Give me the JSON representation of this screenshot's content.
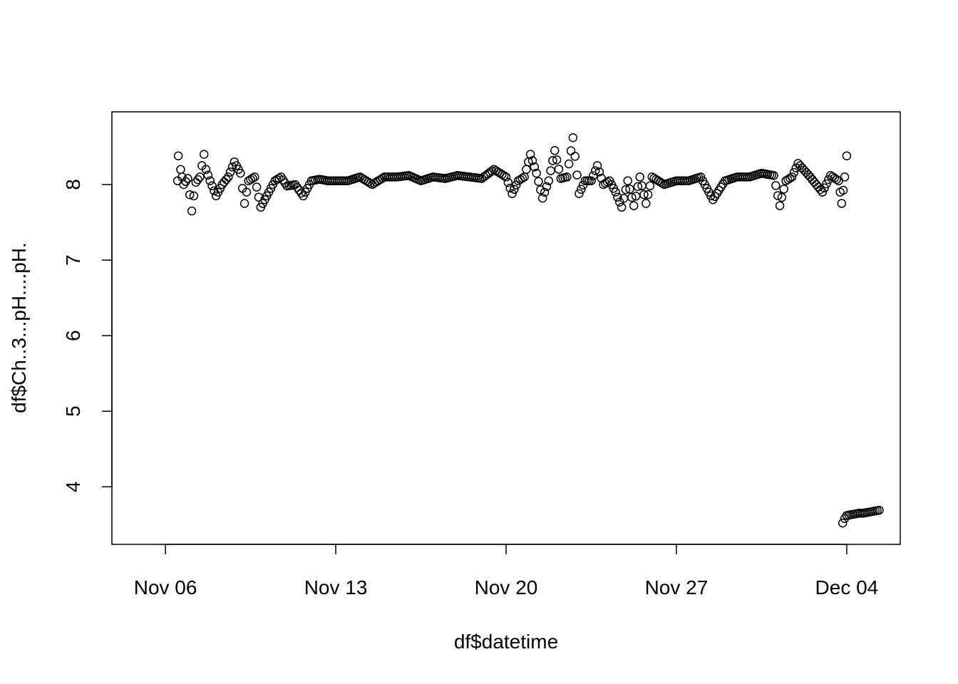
{
  "chart_data": {
    "type": "scatter",
    "title": "",
    "xlabel": "df$datetime",
    "ylabel": "df$Ch..3...pH....pH.",
    "x_type": "date",
    "xlim": [
      "2023-11-05",
      "2023-12-05"
    ],
    "ylim": [
      3.45,
      8.75
    ],
    "x_ticks": [
      {
        "date": "2023-11-06",
        "label": "Nov 06"
      },
      {
        "date": "2023-11-13",
        "label": "Nov 13"
      },
      {
        "date": "2023-11-20",
        "label": "Nov 20"
      },
      {
        "date": "2023-11-27",
        "label": "Nov 27"
      },
      {
        "date": "2023-12-04",
        "label": "Dec 04"
      }
    ],
    "y_ticks": [
      4,
      5,
      6,
      7,
      8
    ],
    "grid": false,
    "legend": "none",
    "marker": "open-circle",
    "series": [
      {
        "x": [
          "2023-11-06 12:00",
          "2023-11-06 12:40",
          "2023-11-06 15:00",
          "2023-11-06 18:00",
          "2023-11-06 22:00",
          "2023-11-07 02:00",
          "2023-11-07 04:00",
          "2023-11-07 06:00",
          "2023-11-07 10:00",
          "2023-11-07 14:00",
          "2023-11-07 16:00",
          "2023-11-07 20:00",
          "2023-11-08 02:00",
          "2023-11-08 08:00",
          "2023-11-08 14:00",
          "2023-11-08 20:00",
          "2023-11-09 02:00",
          "2023-11-09 06:00",
          "2023-11-09 10:00",
          "2023-11-09 16:00",
          "2023-11-09 22:00",
          "2023-11-10 06:00",
          "2023-11-10 12:00",
          "2023-11-10 18:00",
          "2023-11-11 00:00",
          "2023-11-11 08:00",
          "2023-11-11 16:00",
          "2023-11-12 00:00",
          "2023-11-12 08:00",
          "2023-11-12 16:00",
          "2023-11-13 00:00",
          "2023-11-13 12:00",
          "2023-11-14 00:00",
          "2023-11-14 12:00",
          "2023-11-15 00:00",
          "2023-11-15 12:00",
          "2023-11-16 00:00",
          "2023-11-16 12:00",
          "2023-11-17 00:00",
          "2023-11-17 12:00",
          "2023-11-18 00:00",
          "2023-11-18 12:00",
          "2023-11-19 00:00",
          "2023-11-19 12:00",
          "2023-11-20 00:00",
          "2023-11-20 06:00",
          "2023-11-20 12:00",
          "2023-11-20 18:00",
          "2023-11-21 00:00",
          "2023-11-21 06:00",
          "2023-11-21 12:00",
          "2023-11-21 18:00",
          "2023-11-22 00:00",
          "2023-11-22 06:00",
          "2023-11-22 12:00",
          "2023-11-22 18:00",
          "2023-11-23 00:00",
          "2023-11-23 06:00",
          "2023-11-23 12:00",
          "2023-11-23 18:00",
          "2023-11-24 00:00",
          "2023-11-24 06:00",
          "2023-11-24 12:00",
          "2023-11-24 18:00",
          "2023-11-25 00:00",
          "2023-11-25 06:00",
          "2023-11-25 12:00",
          "2023-11-25 18:00",
          "2023-11-26 00:00",
          "2023-11-26 12:00",
          "2023-11-27 00:00",
          "2023-11-27 12:00",
          "2023-11-28 00:00",
          "2023-11-28 12:00",
          "2023-11-29 00:00",
          "2023-11-29 12:00",
          "2023-11-30 00:00",
          "2023-11-30 12:00",
          "2023-12-01 00:00",
          "2023-12-01 06:00",
          "2023-12-01 12:00",
          "2023-12-01 18:00",
          "2023-12-02 00:00",
          "2023-12-02 12:00",
          "2023-12-03 00:00",
          "2023-12-03 08:00",
          "2023-12-03 16:00",
          "2023-12-03 19:00",
          "2023-12-03 22:00",
          "2023-12-04 00:00"
        ],
        "y": [
          8.05,
          8.38,
          8.2,
          8.0,
          8.08,
          7.65,
          7.85,
          8.03,
          8.1,
          8.4,
          8.2,
          8.05,
          7.85,
          8.0,
          8.1,
          8.3,
          8.15,
          7.75,
          8.05,
          8.1,
          7.7,
          7.9,
          8.05,
          8.1,
          7.98,
          8.0,
          7.85,
          8.05,
          8.07,
          8.05,
          8.05,
          8.05,
          8.1,
          8.0,
          8.1,
          8.1,
          8.12,
          8.05,
          8.1,
          8.08,
          8.12,
          8.1,
          8.08,
          8.2,
          8.1,
          7.88,
          8.05,
          8.1,
          8.4,
          8.15,
          7.82,
          8.05,
          8.45,
          8.08,
          8.1,
          8.62,
          7.88,
          8.05,
          8.05,
          8.25,
          8.0,
          8.05,
          7.9,
          7.7,
          8.05,
          7.72,
          8.1,
          7.75,
          8.1,
          8.0,
          8.05,
          8.05,
          8.1,
          7.8,
          8.05,
          8.1,
          8.1,
          8.15,
          8.12,
          7.72,
          8.05,
          8.1,
          8.28,
          8.1,
          7.9,
          8.12,
          8.05,
          7.75,
          8.1,
          8.38
        ]
      },
      {
        "x": [
          "2023-12-03 20:00",
          "2023-12-03 22:00",
          "2023-12-04 00:00",
          "2023-12-04 04:00",
          "2023-12-04 08:00",
          "2023-12-04 12:00",
          "2023-12-04 16:00",
          "2023-12-04 20:00",
          "2023-12-05 00:00",
          "2023-12-05 04:00",
          "2023-12-05 08:00"
        ],
        "y": [
          3.52,
          3.58,
          3.62,
          3.63,
          3.64,
          3.65,
          3.65,
          3.66,
          3.67,
          3.68,
          3.69
        ]
      }
    ]
  }
}
